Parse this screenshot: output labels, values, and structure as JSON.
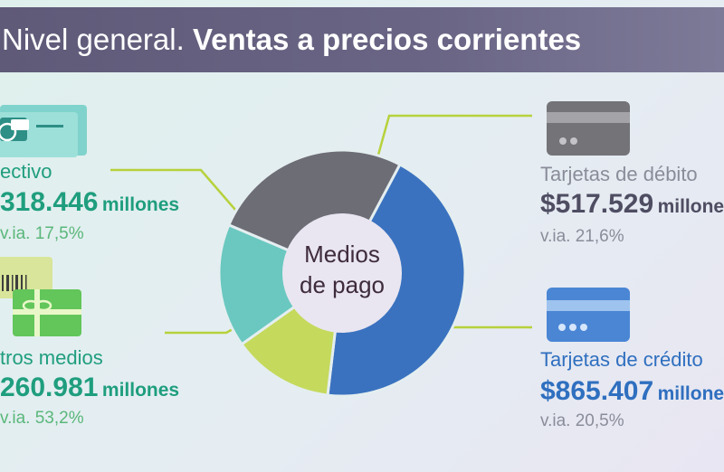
{
  "header": {
    "title_light": "Nivel general.",
    "title_bold": "Ventas a precios corrientes"
  },
  "center_label": [
    "Medios",
    "de pago"
  ],
  "chart_data": {
    "type": "pie",
    "categories": [
      "Tarjetas de crédito",
      "Tarjetas de débito",
      "Efectivo",
      "Otros medios"
    ],
    "values": [
      865.407,
      517.529,
      318.446,
      260.981
    ]
  },
  "segments": {
    "efectivo": {
      "label": "ectivo",
      "amount": "318.446",
      "unit": "millones",
      "via": "v.ia. 17,5%"
    },
    "otros": {
      "label": "tros medios",
      "amount": "260.981",
      "unit": "millones",
      "via": "v.ia. 53,2%"
    },
    "debito": {
      "label": "Tarjetas de débito",
      "amount": "$517.529",
      "unit": "millones",
      "via": "v.ia. 21,6%"
    },
    "credito": {
      "label": "Tarjetas de crédito",
      "amount": "$865.407",
      "unit": "millones",
      "via": "v.ia. 20,5%"
    }
  },
  "colors": {
    "credito": "#3a72bf",
    "debito": "#6d6d76",
    "efectivo": "#6ac8c0",
    "otros": "#c5d95c",
    "connector": "#b7d13c",
    "header": "#635e7c"
  }
}
